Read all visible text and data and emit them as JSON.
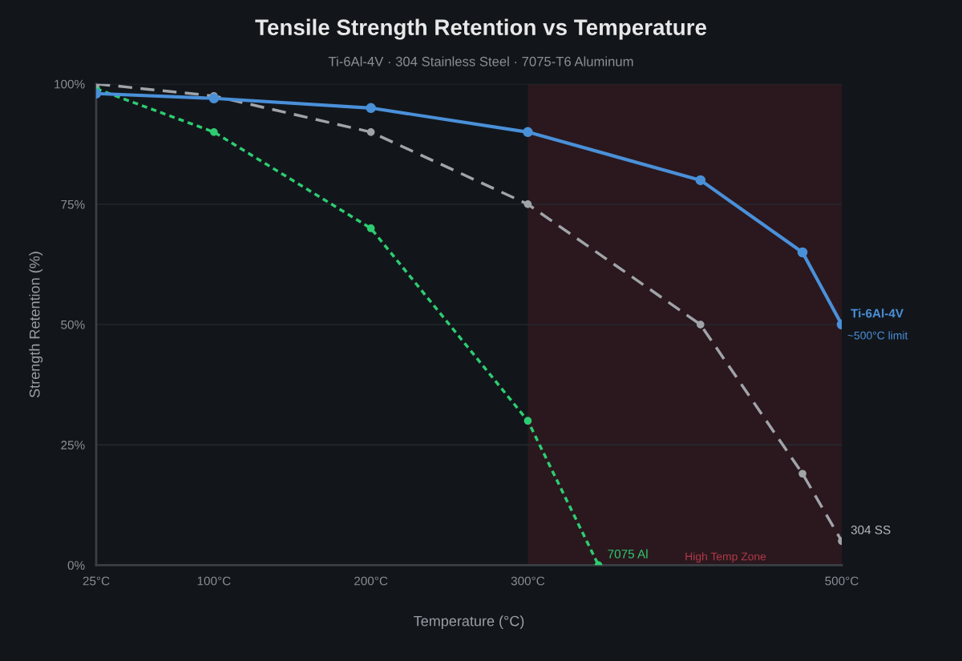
{
  "chart_data": {
    "type": "line",
    "title": "Tensile Strength Retention vs Temperature",
    "subtitle": "Ti-6Al-4V · 304 Stainless Steel · 7075-T6 Aluminum",
    "xlabel": "Temperature (°C)",
    "ylabel": "Strength Retention (%)",
    "xlim": [
      25,
      500
    ],
    "xticks": [
      {
        "value": 25,
        "label": "25°C"
      },
      {
        "value": 100,
        "label": "100°C"
      },
      {
        "value": 200,
        "label": "200°C"
      },
      {
        "value": 300,
        "label": "300°C"
      },
      {
        "value": 500,
        "label": "500°C"
      }
    ],
    "ylim": [
      0,
      100
    ],
    "yticks": [
      {
        "value": 0,
        "label": "0%"
      },
      {
        "value": 25,
        "label": "25%"
      },
      {
        "value": 50,
        "label": "50%"
      },
      {
        "value": 75,
        "label": "75%"
      },
      {
        "value": 100,
        "label": "100%"
      }
    ],
    "grid": "y",
    "legend": false,
    "marker": "circle",
    "series": [
      {
        "name": "Ti-6Al-4V",
        "color": "#4a90d9",
        "line_style": "solid",
        "x": [
          25,
          100,
          200,
          300,
          410,
          475,
          500
        ],
        "values": [
          98,
          97,
          95,
          90,
          80,
          65,
          50
        ]
      },
      {
        "name": "304 SS",
        "color": "#a0a4a8",
        "line_style": "dashed",
        "x": [
          25,
          100,
          200,
          300,
          410,
          475,
          500
        ],
        "values": [
          100,
          97.5,
          90,
          75,
          50,
          19,
          5
        ]
      },
      {
        "name": "7075 Al",
        "color": "#2ecc71",
        "line_style": "dotted",
        "x": [
          25,
          100,
          200,
          300,
          345
        ],
        "values": [
          99,
          90,
          70,
          30,
          0
        ]
      }
    ],
    "bands": [
      {
        "axis": "x",
        "from": 300,
        "to": 500,
        "label": "High Temp Zone",
        "color": "#3a1a22"
      }
    ],
    "annotations": [
      {
        "text": "~500°C limit",
        "x": 500,
        "y": 50
      }
    ]
  }
}
